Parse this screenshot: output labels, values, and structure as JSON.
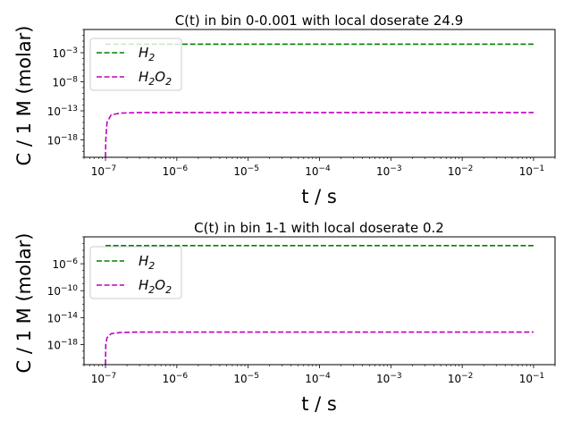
{
  "chart_data": [
    {
      "type": "line",
      "title": "C(t) in bin 0-0.001 with local doserate 24.9",
      "xlabel": "t / s",
      "ylabel": "C / 1 M (molar)",
      "xscale": "log",
      "yscale": "log",
      "xlim": [
        5e-08,
        0.2
      ],
      "ylim": [
        1e-21,
        10.0
      ],
      "xticks": [
        1e-07,
        1e-06,
        1e-05,
        0.0001,
        0.001,
        0.01,
        0.1
      ],
      "yticks": [
        1e-18,
        1e-13,
        1e-08,
        0.001
      ],
      "legend": "top-left",
      "grid": false,
      "series": [
        {
          "name": "H2",
          "label_parts": [
            "H",
            "2"
          ],
          "color": "#008000",
          "linestyle": "dashed",
          "points": [
            [
              1e-07,
              0.03
            ],
            [
              0.1,
              0.03
            ]
          ]
        },
        {
          "name": "H2O2",
          "label_parts": [
            "H",
            "2",
            "O",
            "2"
          ],
          "color": "#bf00bf",
          "linestyle": "dashed",
          "points": [
            [
              1e-07,
              1e-21
            ],
            [
              1.01e-07,
              1e-18
            ],
            [
              1.05e-07,
              1e-15
            ],
            [
              1.2e-07,
              2e-14
            ],
            [
              1.6e-07,
              4e-14
            ],
            [
              3e-07,
              5e-14
            ],
            [
              1e-06,
              5e-14
            ],
            [
              0.1,
              5e-14
            ]
          ]
        }
      ]
    },
    {
      "type": "line",
      "title": "C(t) in bin 1-1 with local doserate 0.2",
      "xlabel": "t / s",
      "ylabel": "C / 1 M (molar)",
      "xscale": "log",
      "yscale": "log",
      "xlim": [
        5e-08,
        0.2
      ],
      "ylim": [
        1e-21,
        0.01
      ],
      "xticks": [
        1e-07,
        1e-06,
        1e-05,
        0.0001,
        0.001,
        0.01,
        0.1
      ],
      "yticks": [
        1e-18,
        1e-14,
        1e-10,
        1e-06
      ],
      "legend": "top-left",
      "grid": false,
      "series": [
        {
          "name": "H2",
          "label_parts": [
            "H",
            "2"
          ],
          "color": "#008000",
          "linestyle": "dashed",
          "points": [
            [
              1e-07,
              0.0005
            ],
            [
              0.1,
              0.0005
            ]
          ]
        },
        {
          "name": "H2O2",
          "label_parts": [
            "H",
            "2",
            "O",
            "2"
          ],
          "color": "#bf00bf",
          "linestyle": "dashed",
          "points": [
            [
              1e-07,
              1e-21
            ],
            [
              1.01e-07,
              1e-18
            ],
            [
              1.05e-07,
              1e-17
            ],
            [
              1.2e-07,
              4e-17
            ],
            [
              1.6e-07,
              6e-17
            ],
            [
              3e-07,
              7e-17
            ],
            [
              1e-06,
              7e-17
            ],
            [
              0.1,
              7e-17
            ]
          ]
        }
      ]
    }
  ]
}
